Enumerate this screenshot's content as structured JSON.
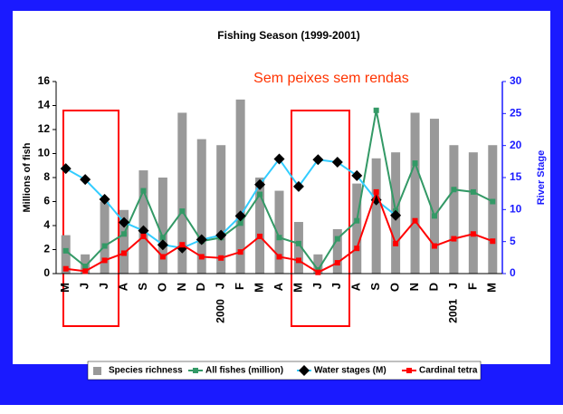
{
  "chart_data": {
    "type": "bar",
    "title": "Fishing Season (1999-2001)",
    "annotation": "Sem peixes sem rendas",
    "y_label": "Millions of fish",
    "y2_label": "River Stage",
    "categories": [
      "M",
      "J",
      "J",
      "A",
      "S",
      "O",
      "N",
      "D",
      "J",
      "F",
      "M",
      "A",
      "M",
      "J",
      "J",
      "A",
      "S",
      "O",
      "N",
      "D",
      "J",
      "F",
      "M"
    ],
    "category_groups": [
      null,
      null,
      null,
      null,
      null,
      null,
      null,
      null,
      "2000",
      null,
      null,
      null,
      null,
      null,
      null,
      null,
      null,
      null,
      null,
      null,
      "2001",
      null,
      null
    ],
    "ylim": [
      0,
      16
    ],
    "yticks": [
      0,
      2,
      4,
      6,
      8,
      10,
      12,
      14,
      16
    ],
    "y2lim": [
      0,
      30
    ],
    "y2ticks": [
      0,
      5,
      10,
      15,
      20,
      25,
      30
    ],
    "legend": "bottom",
    "series": [
      {
        "name": "Species richness",
        "type": "bar",
        "color": "#999999",
        "values": [
          3.2,
          1.6,
          6.0,
          5.3,
          8.6,
          8.0,
          13.4,
          11.2,
          10.7,
          14.5,
          8.0,
          6.9,
          4.3,
          1.6,
          3.7,
          7.5,
          9.6,
          10.1,
          13.4,
          12.9,
          10.7,
          10.1,
          10.7
        ]
      },
      {
        "name": "All fishes (million)",
        "type": "line",
        "color": "#339966",
        "marker": "square",
        "values": [
          1.9,
          0.6,
          2.3,
          3.3,
          6.9,
          3.0,
          5.2,
          2.7,
          3.0,
          4.2,
          6.6,
          3.0,
          2.5,
          0.3,
          2.9,
          4.4,
          13.6,
          5.2,
          9.2,
          4.8,
          7.0,
          6.8,
          6.0
        ]
      },
      {
        "name": "Water stages (M)",
        "type": "line",
        "color": "#33ccff",
        "marker": "diamond",
        "marker_color": "#000000",
        "axis": "y2",
        "values": [
          16.4,
          14.7,
          11.6,
          8.0,
          6.7,
          4.5,
          4.0,
          5.3,
          6.0,
          9.0,
          13.9,
          17.9,
          13.6,
          17.8,
          17.4,
          15.3,
          11.5,
          9.1,
          null,
          null,
          null,
          null,
          null
        ]
      },
      {
        "name": "Cardinal tetra",
        "type": "line",
        "color": "#ff0000",
        "marker": "square",
        "values": [
          0.4,
          0.2,
          1.1,
          1.7,
          3.1,
          1.4,
          2.4,
          1.4,
          1.3,
          1.8,
          3.1,
          1.4,
          1.1,
          0.1,
          0.9,
          2.1,
          6.8,
          2.5,
          4.4,
          2.3,
          2.9,
          3.3,
          2.7
        ]
      }
    ]
  }
}
